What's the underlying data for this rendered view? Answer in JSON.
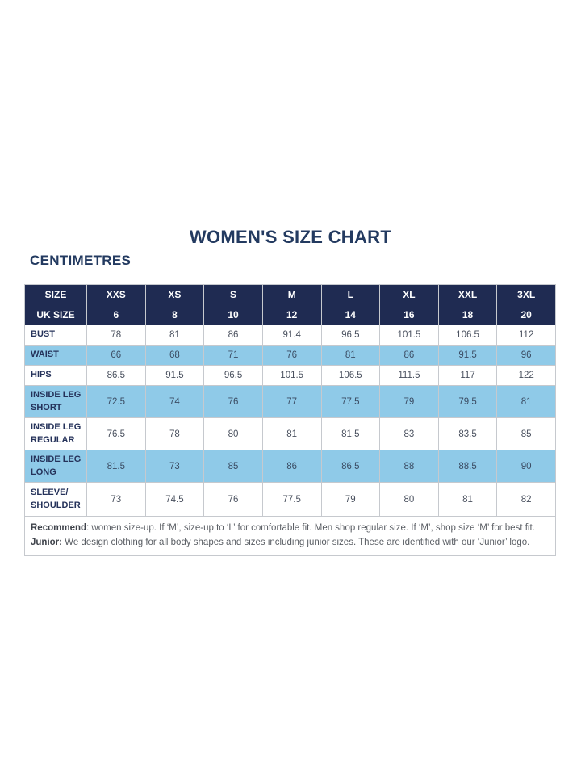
{
  "page": {
    "title": "WOMEN'S SIZE CHART",
    "unit_label": "CENTIMETRES"
  },
  "colors": {
    "header_navy": "#1f2b52",
    "row_light_blue": "#8fcae8",
    "border_gray": "#c6c9ce",
    "title_navy": "#233a60",
    "value_text": "#49505e"
  },
  "table": {
    "header": {
      "label": "SIZE",
      "sizes": [
        "XXS",
        "XS",
        "S",
        "M",
        "L",
        "XL",
        "XXL",
        "3XL"
      ]
    },
    "uk_row": {
      "label": "UK SIZE",
      "values": [
        "6",
        "8",
        "10",
        "12",
        "14",
        "16",
        "18",
        "20"
      ]
    },
    "rows": [
      {
        "label": "BUST",
        "values": [
          "78",
          "81",
          "86",
          "91.4",
          "96.5",
          "101.5",
          "106.5",
          "112"
        ],
        "highlight": false,
        "tall": false
      },
      {
        "label": "WAIST",
        "values": [
          "66",
          "68",
          "71",
          "76",
          "81",
          "86",
          "91.5",
          "96"
        ],
        "highlight": true,
        "tall": false
      },
      {
        "label": "HIPS",
        "values": [
          "86.5",
          "91.5",
          "96.5",
          "101.5",
          "106.5",
          "111.5",
          "117",
          "122"
        ],
        "highlight": false,
        "tall": false
      },
      {
        "label": "INSIDE LEG\nSHORT",
        "values": [
          "72.5",
          "74",
          "76",
          "77",
          "77.5",
          "79",
          "79.5",
          "81"
        ],
        "highlight": true,
        "tall": true
      },
      {
        "label": "INSIDE LEG\nREGULAR",
        "values": [
          "76.5",
          "78",
          "80",
          "81",
          "81.5",
          "83",
          "83.5",
          "85"
        ],
        "highlight": false,
        "tall": true
      },
      {
        "label": "INSIDE LEG\nLONG",
        "values": [
          "81.5",
          "73",
          "85",
          "86",
          "86.5",
          "88",
          "88.5",
          "90"
        ],
        "highlight": true,
        "tall": true
      },
      {
        "label": "SLEEVE/\nSHOULDER",
        "values": [
          "73",
          "74.5",
          "76",
          "77.5",
          "79",
          "80",
          "81",
          "82"
        ],
        "highlight": false,
        "tall2": true
      }
    ],
    "notes": [
      {
        "lead": "Recommend",
        "text": ": women size-up. If ‘M’, size-up to ‘L’ for comfortable fit. Men shop regular size. If ‘M’, shop size ‘M’ for best fit."
      },
      {
        "lead": "Junior:",
        "text": " We design clothing for all body shapes and sizes including junior sizes. These are identified with our ‘Junior’ logo."
      }
    ]
  }
}
